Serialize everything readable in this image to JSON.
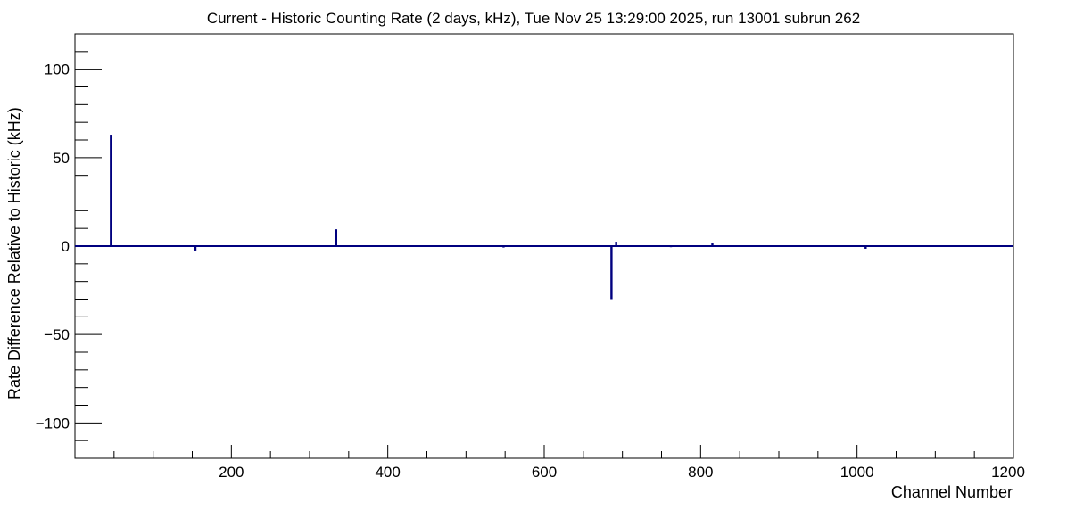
{
  "chart_data": {
    "type": "bar",
    "title": "Current - Historic Counting Rate (2 days, kHz), Tue Nov 25 13:29:00 2025, run 13001 subrun 262",
    "xlabel": "Channel Number",
    "ylabel": "Rate Difference Relative to Historic (kHz)",
    "xlim": [
      0,
      1200
    ],
    "ylim": [
      -120,
      120
    ],
    "x_ticks": [
      200,
      400,
      600,
      800,
      1000,
      1200
    ],
    "y_ticks": [
      -100,
      -50,
      0,
      50,
      100
    ],
    "x_tick_labels": [
      "200",
      "400",
      "600",
      "800",
      "1000",
      "1200"
    ],
    "y_tick_labels": [
      "−100",
      "−50",
      "0",
      "50",
      "100"
    ],
    "series_color": "#00007f",
    "points": [
      {
        "x": 40,
        "y": 0.5
      },
      {
        "x": 46,
        "y": 63
      },
      {
        "x": 73,
        "y": 0.5
      },
      {
        "x": 86,
        "y": 0.4
      },
      {
        "x": 140,
        "y": 0.3
      },
      {
        "x": 154,
        "y": -2.5
      },
      {
        "x": 168,
        "y": 0.5
      },
      {
        "x": 185,
        "y": 0.4
      },
      {
        "x": 240,
        "y": 0.3
      },
      {
        "x": 268,
        "y": 0.4
      },
      {
        "x": 303,
        "y": 0.3
      },
      {
        "x": 334,
        "y": 9.5
      },
      {
        "x": 350,
        "y": 0.5
      },
      {
        "x": 372,
        "y": 0.4
      },
      {
        "x": 436,
        "y": 0.3
      },
      {
        "x": 548,
        "y": -0.8
      },
      {
        "x": 583,
        "y": 0.4
      },
      {
        "x": 617,
        "y": 0.3
      },
      {
        "x": 686,
        "y": -30
      },
      {
        "x": 692,
        "y": 2.5
      },
      {
        "x": 762,
        "y": -0.6
      },
      {
        "x": 785,
        "y": 0.4
      },
      {
        "x": 815,
        "y": 1.5
      },
      {
        "x": 975,
        "y": 0.4
      },
      {
        "x": 982,
        "y": 0.5
      },
      {
        "x": 1011,
        "y": -1.5
      },
      {
        "x": 1090,
        "y": 0.4
      },
      {
        "x": 1178,
        "y": 0.4
      },
      {
        "x": 1190,
        "y": 0.3
      }
    ]
  }
}
